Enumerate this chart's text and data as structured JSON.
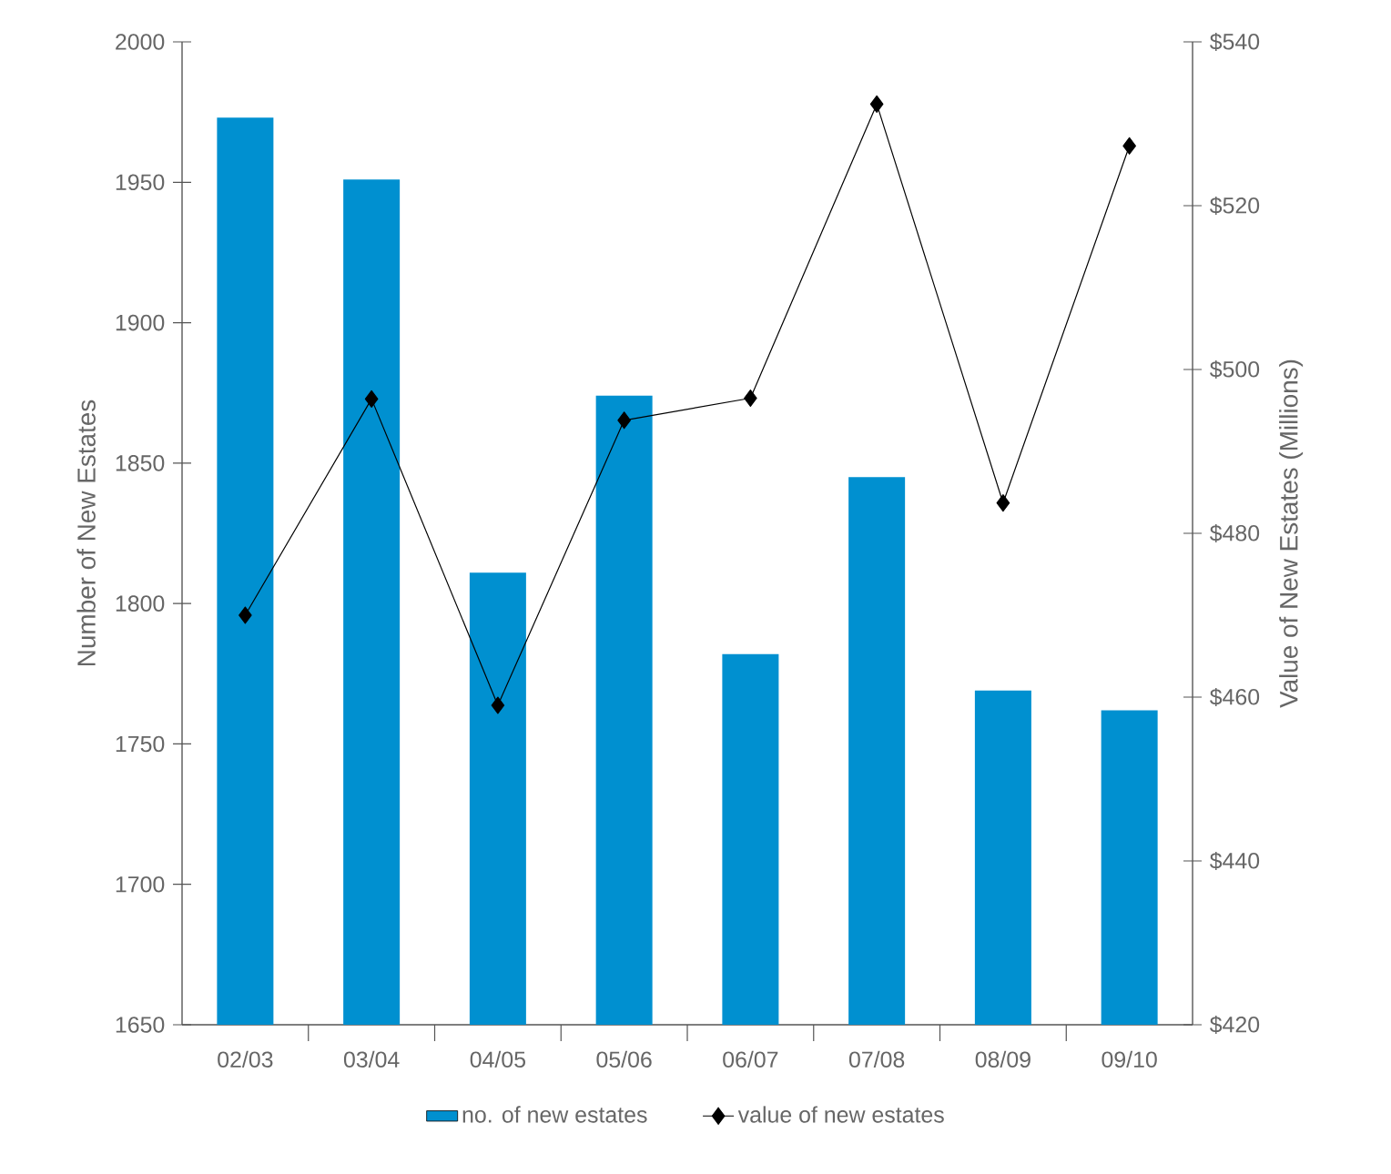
{
  "chart_data": {
    "type": "bar",
    "ylabel": "Number of New Estates",
    "y2label": "Value of New Estates (Millions)",
    "categories": [
      "02/03",
      "03/04",
      "04/05",
      "05/06",
      "06/07",
      "07/08",
      "08/09",
      "09/10"
    ],
    "series": [
      {
        "name": "no. of new estates",
        "color": "#0090d0",
        "values": [
          1973,
          1951,
          1811,
          1874,
          1782,
          1845,
          1769,
          1762
        ]
      },
      {
        "name": "value of new estates",
        "type": "line",
        "axis": "y2",
        "color": "#000000",
        "values": [
          470,
          496.4,
          459,
          493.8,
          496.5,
          532.4,
          483.7,
          527.3
        ]
      }
    ],
    "ylim": [
      1650,
      2000
    ],
    "yticks": [
      1650,
      1700,
      1750,
      1800,
      1850,
      1900,
      1950,
      2000
    ],
    "y2lim": [
      420,
      540
    ],
    "y2ticks": [
      {
        "value": 420,
        "label": "$420"
      },
      {
        "value": 440,
        "label": "$440"
      },
      {
        "value": 460,
        "label": "$460"
      },
      {
        "value": 480,
        "label": "$480"
      },
      {
        "value": 500,
        "label": "$500"
      },
      {
        "value": 520,
        "label": "$520"
      },
      {
        "value": 540,
        "label": "$540"
      }
    ],
    "marker": "diamond",
    "line_style": "solid",
    "grid": false,
    "legend": "bottom"
  }
}
